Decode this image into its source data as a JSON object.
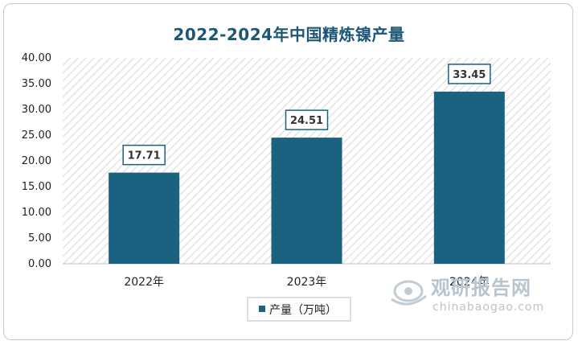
{
  "chart_data": {
    "type": "bar",
    "title": "2022-2024年中国精炼镍产量",
    "categories": [
      "2022年",
      "2023年",
      "2024年"
    ],
    "series": [
      {
        "name": "产量（万吨）",
        "values": [
          17.71,
          24.51,
          33.45
        ]
      }
    ],
    "data_labels": [
      "17.71",
      "24.51",
      "33.45"
    ],
    "yticks": [
      "0.00",
      "5.00",
      "10.00",
      "15.00",
      "20.00",
      "25.00",
      "30.00",
      "35.00",
      "40.00"
    ],
    "ylim": [
      0,
      40
    ],
    "grid": false,
    "legend_position": "bottom",
    "colors": {
      "bar": "#1b6180",
      "title": "#1c5876",
      "label_box_border": "#1b6180",
      "hatch": "#e3e3e3"
    }
  },
  "watermark": {
    "icon": "eye-logo-icon",
    "name": "观研报告网",
    "site": "chinabaogao.com"
  }
}
